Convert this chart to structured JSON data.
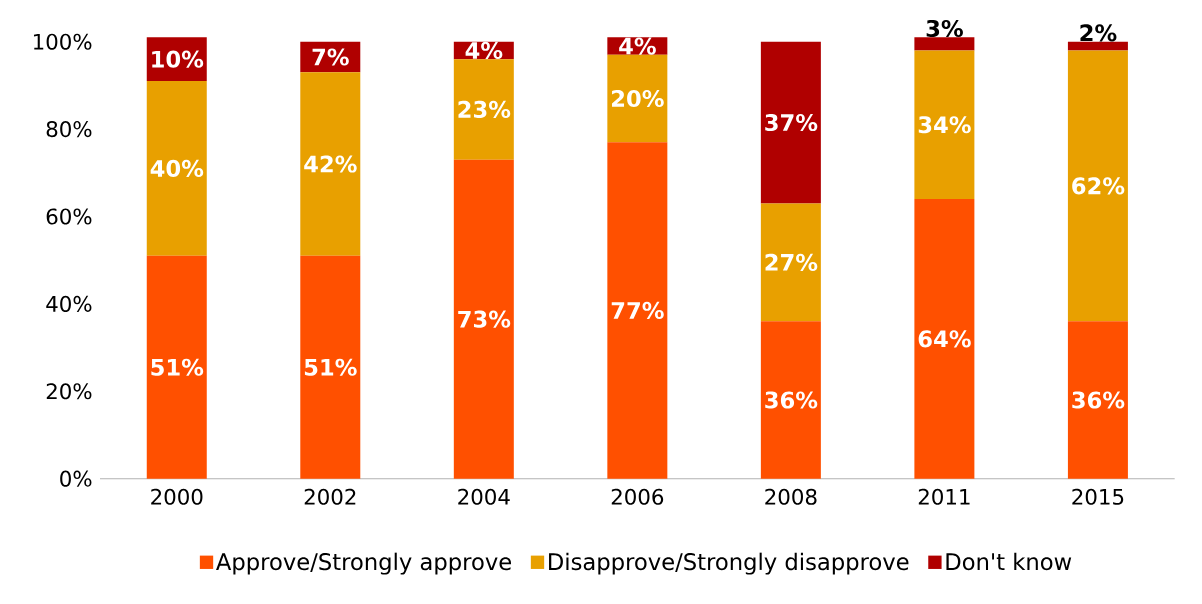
{
  "chart_data": {
    "type": "bar",
    "stacked": true,
    "categories": [
      "2000",
      "2002",
      "2004",
      "2006",
      "2008",
      "2011",
      "2015"
    ],
    "series": [
      {
        "name": "Approve/Strongly approve",
        "color": "#ff5000",
        "values": [
          51,
          51,
          73,
          77,
          36,
          64,
          36
        ],
        "value_labels": [
          "51%",
          "51%",
          "73%",
          "77%",
          "36%",
          "64%",
          "36%"
        ]
      },
      {
        "name": "Disapprove/Strongly disapprove",
        "color": "#e8a000",
        "values": [
          40,
          42,
          23,
          20,
          27,
          34,
          62
        ],
        "value_labels": [
          "40%",
          "42%",
          "23%",
          "20%",
          "27%",
          "34%",
          "62%"
        ]
      },
      {
        "name": "Don't know",
        "color": "#b00000",
        "values": [
          10,
          7,
          4,
          4,
          37,
          3,
          2
        ],
        "value_labels": [
          "10%",
          "7%",
          "4%",
          "4%",
          "37%",
          "3%",
          "2%"
        ]
      }
    ],
    "ylim": [
      0,
      101
    ],
    "yticks": [
      {
        "value": 0,
        "label": "0%"
      },
      {
        "value": 20,
        "label": "20%"
      },
      {
        "value": 40,
        "label": "40%"
      },
      {
        "value": 60,
        "label": "60%"
      },
      {
        "value": 80,
        "label": "80%"
      },
      {
        "value": 100,
        "label": "100%"
      }
    ],
    "legend": "bottom"
  }
}
